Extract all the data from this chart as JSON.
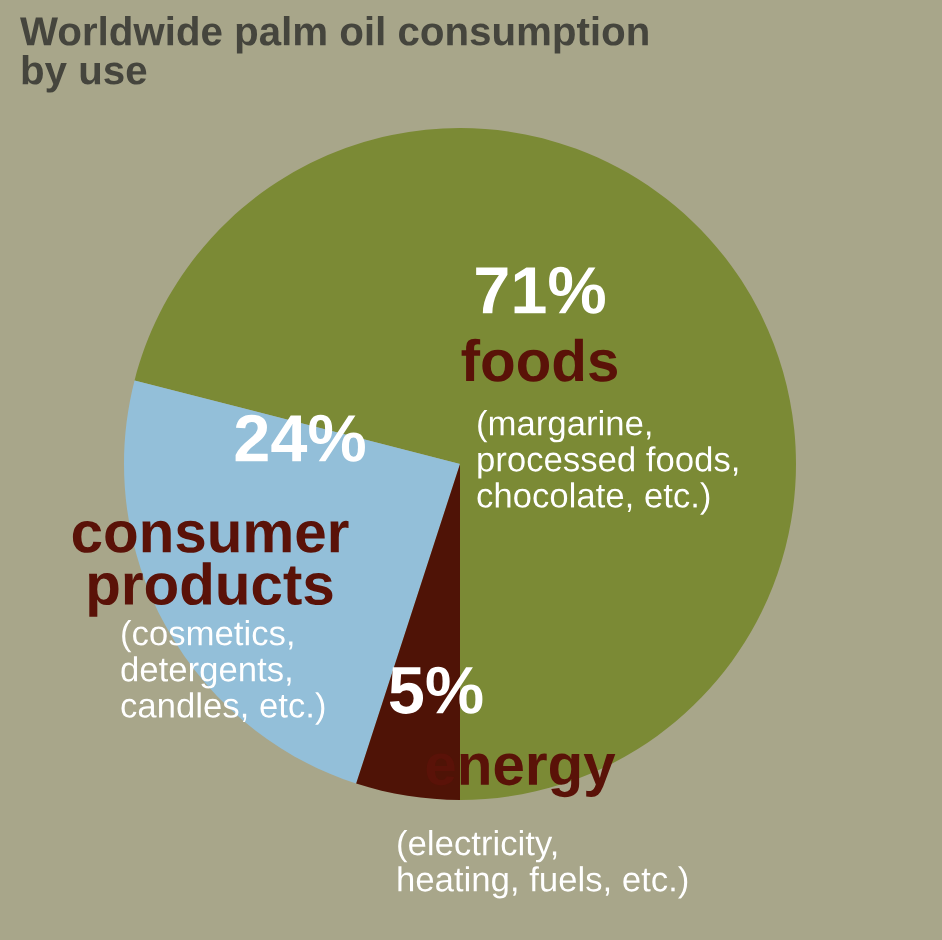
{
  "chart_data": {
    "type": "pie",
    "title": "Worldwide palm oil consumption\nby use",
    "categories": [
      "foods",
      "consumer\nproducts",
      "energy"
    ],
    "values": [
      71,
      24,
      5
    ],
    "colors": [
      "#7b8a35",
      "#93bfd9",
      "#4f1306"
    ],
    "value_labels": [
      "71%",
      "24%",
      "5%"
    ],
    "annotations": [
      "(margarine,\nprocessed foods,\nchocolate, etc.)",
      "(cosmetics,\ndetergents,\ncandles, etc.)",
      "(electricity,\nheating, fuels, etc.)"
    ],
    "legend": false
  }
}
